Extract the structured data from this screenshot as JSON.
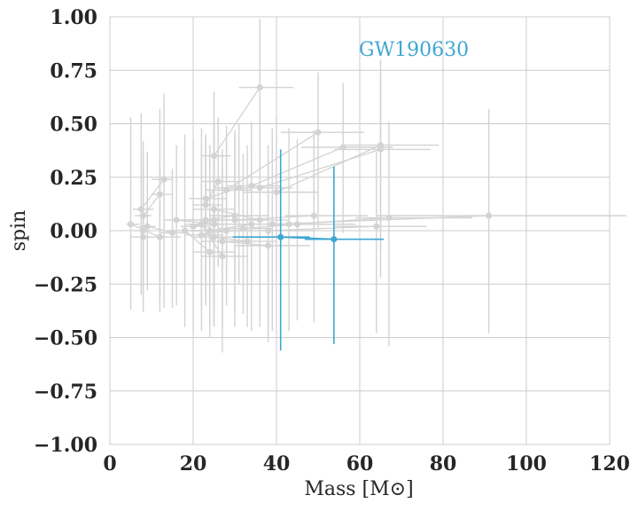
{
  "chart_data": {
    "type": "scatter",
    "title": "",
    "xlabel": "Mass [M⊙]",
    "ylabel": "spin",
    "xlim": [
      0,
      120
    ],
    "ylim": [
      -1.0,
      1.0
    ],
    "xticks": [
      "0",
      "20",
      "40",
      "60",
      "80",
      "100",
      "120"
    ],
    "yticks": [
      "−1.00",
      "−0.75",
      "−0.50",
      "−0.25",
      "0.00",
      "0.25",
      "0.50",
      "0.75",
      "1.00"
    ],
    "grid": true,
    "annotation": "GW190630",
    "colors": {
      "background_events": "#d3d3d3",
      "highlight": "#3fa7d1",
      "grid": "#cccccc",
      "text": "#262626"
    },
    "highlight_event": {
      "name": "GW190630",
      "points": [
        {
          "x": 41,
          "y": -0.03,
          "xerr": [
            11.5,
            7.0
          ],
          "yerr": [
            0.53,
            0.41
          ]
        },
        {
          "x": 53.8,
          "y": -0.04,
          "xerr": [
            7.0,
            12.0
          ],
          "yerr": [
            0.49,
            0.34
          ]
        }
      ]
    },
    "background_events": [
      [
        {
          "x": 36,
          "y": 0.67,
          "xerr": [
            5,
            8
          ],
          "yerr": [
            0.35,
            0.32
          ]
        },
        {
          "x": 25,
          "y": 0.35,
          "xerr": [
            3,
            4
          ],
          "yerr": [
            0.4,
            0.3
          ]
        }
      ],
      [
        {
          "x": 50,
          "y": 0.46,
          "xerr": [
            9,
            11
          ],
          "yerr": [
            0.45,
            0.28
          ]
        },
        {
          "x": 28,
          "y": 0.19,
          "xerr": [
            5,
            6
          ],
          "yerr": [
            0.4,
            0.3
          ]
        }
      ],
      [
        {
          "x": 65,
          "y": 0.4,
          "xerr": [
            9,
            14
          ],
          "yerr": [
            0.5,
            0.4
          ]
        },
        {
          "x": 40,
          "y": 0.18,
          "xerr": [
            8,
            10
          ],
          "yerr": [
            0.4,
            0.35
          ]
        }
      ],
      [
        {
          "x": 56,
          "y": 0.39,
          "xerr": [
            10,
            12
          ],
          "yerr": [
            0.4,
            0.3
          ]
        },
        {
          "x": 34,
          "y": 0.21,
          "xerr": [
            6,
            7
          ],
          "yerr": [
            0.45,
            0.3
          ]
        }
      ],
      [
        {
          "x": 65,
          "y": 0.38,
          "xerr": [
            11,
            12
          ],
          "yerr": [
            0.6,
            0.35
          ]
        },
        {
          "x": 36,
          "y": 0.2,
          "xerr": [
            6,
            8
          ],
          "yerr": [
            0.5,
            0.25
          ]
        }
      ],
      [
        {
          "x": 91,
          "y": 0.07,
          "xerr": [
            27,
            33
          ],
          "yerr": [
            0.55,
            0.5
          ]
        },
        {
          "x": 39,
          "y": 0.03,
          "xerr": [
            15,
            20
          ],
          "yerr": [
            0.5,
            0.45
          ]
        }
      ],
      [
        {
          "x": 67,
          "y": 0.06,
          "xerr": [
            8,
            20
          ],
          "yerr": [
            0.6,
            0.45
          ]
        },
        {
          "x": 43,
          "y": 0.03,
          "xerr": [
            12,
            13
          ],
          "yerr": [
            0.5,
            0.45
          ]
        }
      ],
      [
        {
          "x": 64,
          "y": 0.02,
          "xerr": [
            10,
            12
          ],
          "yerr": [
            0.5,
            0.35
          ]
        },
        {
          "x": 38,
          "y": 0.0,
          "xerr": [
            10,
            11
          ],
          "yerr": [
            0.5,
            0.4
          ]
        }
      ],
      [
        {
          "x": 49,
          "y": 0.07,
          "xerr": [
            7,
            13
          ],
          "yerr": [
            0.5,
            0.4
          ]
        },
        {
          "x": 30,
          "y": 0.05,
          "xerr": [
            6,
            8
          ],
          "yerr": [
            0.5,
            0.4
          ]
        }
      ],
      [
        {
          "x": 13,
          "y": 0.24,
          "xerr": [
            3,
            2
          ],
          "yerr": [
            0.6,
            0.4
          ]
        },
        {
          "x": 7.5,
          "y": 0.1,
          "xerr": [
            2,
            3
          ],
          "yerr": [
            0.4,
            0.45
          ]
        }
      ],
      [
        {
          "x": 12,
          "y": 0.17,
          "xerr": [
            2,
            3
          ],
          "yerr": [
            0.5,
            0.4
          ]
        },
        {
          "x": 8,
          "y": 0.07,
          "xerr": [
            2,
            2
          ],
          "yerr": [
            0.45,
            0.35
          ]
        }
      ],
      [
        {
          "x": 12,
          "y": -0.03,
          "xerr": [
            4,
            5
          ],
          "yerr": [
            0.35,
            0.35
          ]
        },
        {
          "x": 5,
          "y": 0.03,
          "xerr": [
            1,
            2
          ],
          "yerr": [
            0.4,
            0.5
          ]
        }
      ],
      [
        {
          "x": 8,
          "y": -0.03,
          "xerr": [
            3,
            3
          ],
          "yerr": [
            0.3,
            0.38
          ]
        },
        {
          "x": 8,
          "y": 0.0,
          "xerr": [
            2,
            2
          ],
          "yerr": [
            0.3,
            0.3
          ]
        }
      ],
      [
        {
          "x": 24,
          "y": -0.1,
          "xerr": [
            4,
            6
          ],
          "yerr": [
            0.4,
            0.5
          ]
        },
        {
          "x": 18,
          "y": 0.0,
          "xerr": [
            3,
            4
          ],
          "yerr": [
            0.45,
            0.45
          ]
        }
      ],
      [
        {
          "x": 27,
          "y": -0.12,
          "xerr": [
            5,
            6
          ],
          "yerr": [
            0.45,
            0.5
          ]
        },
        {
          "x": 22,
          "y": 0.03,
          "xerr": [
            4,
            5
          ],
          "yerr": [
            0.5,
            0.45
          ]
        }
      ],
      [
        {
          "x": 25,
          "y": 0.05,
          "xerr": [
            4,
            6
          ],
          "yerr": [
            0.5,
            0.45
          ]
        },
        {
          "x": 20,
          "y": 0.02,
          "xerr": [
            3,
            4
          ],
          "yerr": [
            0.5,
            0.4
          ]
        }
      ],
      [
        {
          "x": 34,
          "y": 0.03,
          "xerr": [
            6,
            9
          ],
          "yerr": [
            0.5,
            0.4
          ]
        },
        {
          "x": 24,
          "y": 0.0,
          "xerr": [
            5,
            6
          ],
          "yerr": [
            0.45,
            0.4
          ]
        }
      ],
      [
        {
          "x": 30,
          "y": 0.07,
          "xerr": [
            6,
            8
          ],
          "yerr": [
            0.45,
            0.4
          ]
        },
        {
          "x": 23,
          "y": 0.05,
          "xerr": [
            4,
            5
          ],
          "yerr": [
            0.4,
            0.4
          ]
        }
      ],
      [
        {
          "x": 38,
          "y": -0.07,
          "xerr": [
            8,
            10
          ],
          "yerr": [
            0.45,
            0.4
          ]
        },
        {
          "x": 27,
          "y": -0.05,
          "xerr": [
            5,
            7
          ],
          "yerr": [
            0.4,
            0.35
          ]
        }
      ],
      [
        {
          "x": 31,
          "y": 0.2,
          "xerr": [
            6,
            8
          ],
          "yerr": [
            0.45,
            0.3
          ]
        },
        {
          "x": 23,
          "y": 0.15,
          "xerr": [
            4,
            5
          ],
          "yerr": [
            0.45,
            0.3
          ]
        }
      ],
      [
        {
          "x": 26,
          "y": 0.23,
          "xerr": [
            4,
            5
          ],
          "yerr": [
            0.4,
            0.3
          ]
        },
        {
          "x": 23,
          "y": 0.12,
          "xerr": [
            3,
            4
          ],
          "yerr": [
            0.35,
            0.25
          ]
        }
      ],
      [
        {
          "x": 36,
          "y": 0.05,
          "xerr": [
            6,
            7
          ],
          "yerr": [
            0.5,
            0.5
          ]
        },
        {
          "x": 25,
          "y": 0.1,
          "xerr": [
            5,
            5
          ],
          "yerr": [
            0.45,
            0.4
          ]
        }
      ],
      [
        {
          "x": 28,
          "y": 0.0,
          "xerr": [
            5,
            6
          ],
          "yerr": [
            0.35,
            0.4
          ]
        },
        {
          "x": 22,
          "y": -0.02,
          "xerr": [
            4,
            5
          ],
          "yerr": [
            0.35,
            0.4
          ]
        }
      ],
      [
        {
          "x": 15,
          "y": -0.01,
          "xerr": [
            3,
            4
          ],
          "yerr": [
            0.35,
            0.3
          ]
        },
        {
          "x": 9,
          "y": 0.02,
          "xerr": [
            2,
            2
          ],
          "yerr": [
            0.3,
            0.35
          ]
        }
      ],
      [
        {
          "x": 33,
          "y": -0.05,
          "xerr": [
            6,
            7
          ],
          "yerr": [
            0.4,
            0.45
          ]
        },
        {
          "x": 25,
          "y": -0.03,
          "xerr": [
            5,
            6
          ],
          "yerr": [
            0.4,
            0.4
          ]
        }
      ],
      [
        {
          "x": 45,
          "y": 0.03,
          "xerr": [
            7,
            8
          ],
          "yerr": [
            0.45,
            0.4
          ]
        },
        {
          "x": 32,
          "y": 0.01,
          "xerr": [
            6,
            7
          ],
          "yerr": [
            0.4,
            0.35
          ]
        }
      ],
      [
        {
          "x": 25,
          "y": 0.03,
          "xerr": [
            4,
            5
          ],
          "yerr": [
            0.4,
            0.4
          ]
        },
        {
          "x": 16,
          "y": 0.05,
          "xerr": [
            3,
            4
          ],
          "yerr": [
            0.4,
            0.35
          ]
        }
      ]
    ]
  }
}
